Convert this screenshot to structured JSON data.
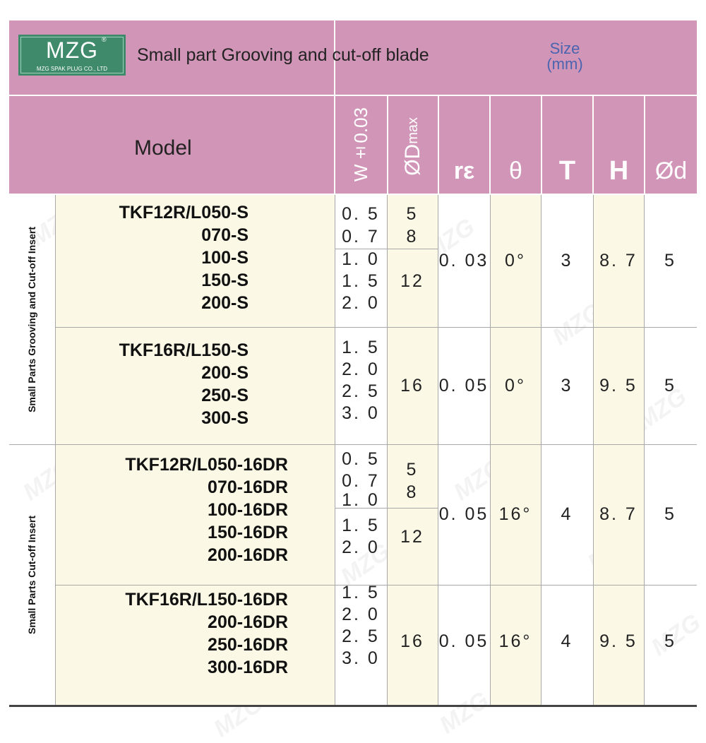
{
  "logo": {
    "text": "MZG",
    "reg": "®",
    "sub": "MZG SPAK PLUG CO., LTD"
  },
  "header": {
    "title": "Small part Grooving and cut-off blade",
    "size_label": "Size",
    "size_unit": "(mm)",
    "model_label": "Model",
    "columns": {
      "w": "W±0.03",
      "dmax_prefix": "ØD",
      "dmax_suffix": "max",
      "re": "rε",
      "theta": "θ",
      "t": "T",
      "h": "H",
      "d": "Ød"
    }
  },
  "groups": [
    {
      "label": "Small Parts Grooving and Cut-off Insert"
    },
    {
      "label": "Small Parts Cut-off Insert"
    }
  ],
  "rows": [
    {
      "models": [
        "TKF12R/L050-S",
        "070-S",
        "100-S",
        "150-S",
        "200-S"
      ],
      "w_top": [
        "0. 5",
        "0. 7"
      ],
      "w_bottom": [
        "1. 0",
        "1. 5",
        "2. 0"
      ],
      "d_top": [
        "5",
        "8"
      ],
      "d_bottom": "12",
      "re": "0. 03",
      "theta": "0°",
      "t": "3",
      "h": "8. 7",
      "d": "5"
    },
    {
      "models": [
        "TKF16R/L150-S",
        "200-S",
        "250-S",
        "300-S"
      ],
      "w": [
        "1. 5",
        "2. 0",
        "2. 5",
        "3. 0"
      ],
      "dmax": "16",
      "re": "0. 05",
      "theta": "0°",
      "t": "3",
      "h": "9. 5",
      "d": "5"
    },
    {
      "models": [
        "TKF12R/L050-16DR",
        "070-16DR",
        "100-16DR",
        "150-16DR",
        "200-16DR"
      ],
      "w_top": [
        "0. 5",
        "0. 7",
        "1. 0"
      ],
      "w_bottom": [
        "1. 5",
        "2. 0"
      ],
      "d_top": [
        "5",
        "8"
      ],
      "d_bottom": "12",
      "re": "0. 05",
      "theta": "16°",
      "t": "4",
      "h": "8. 7",
      "d": "5"
    },
    {
      "models": [
        "TKF16R/L150-16DR",
        "200-16DR",
        "250-16DR",
        "300-16DR"
      ],
      "w": [
        "1. 5",
        "2. 0",
        "2. 5",
        "3. 0"
      ],
      "dmax": "16",
      "re": "0. 05",
      "theta": "16°",
      "t": "4",
      "h": "9. 5",
      "d": "5"
    }
  ],
  "watermark": "MZG",
  "colors": {
    "header": "#d195b7",
    "cream": "#fbf9e6",
    "logo_bg": "#3e8a6b"
  }
}
